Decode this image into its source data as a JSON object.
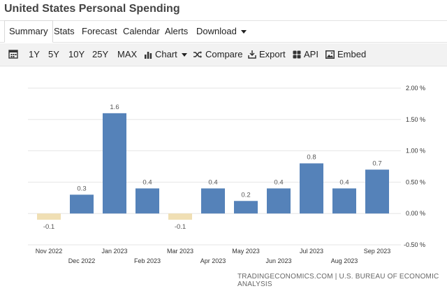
{
  "title": "United States Personal Spending",
  "tabs": [
    {
      "label": "Summary",
      "active": true
    },
    {
      "label": "Stats"
    },
    {
      "label": "Forecast"
    },
    {
      "label": "Calendar"
    },
    {
      "label": "Alerts"
    },
    {
      "label": "Download"
    }
  ],
  "toolbar": {
    "ranges": [
      "1Y",
      "5Y",
      "10Y",
      "25Y",
      "MAX"
    ],
    "chart_label": "Chart",
    "compare_label": "Compare",
    "export_label": "Export",
    "api_label": "API",
    "embed_label": "Embed"
  },
  "source": "TRADINGECONOMICS.COM | U.S. BUREAU OF ECONOMIC ANALYSIS",
  "colors": {
    "positive": "#5582b9",
    "negative": "#f0dfb4",
    "grid": "#e6e6e6"
  },
  "chart_data": {
    "type": "bar",
    "categories": [
      "Nov 2022",
      "Dec 2022",
      "Jan 2023",
      "Feb 2023",
      "Mar 2023",
      "Apr 2023",
      "May 2023",
      "Jun 2023",
      "Jul 2023",
      "Aug 2023",
      "Sep 2023"
    ],
    "values": [
      -0.1,
      0.3,
      1.6,
      0.4,
      -0.1,
      0.4,
      0.2,
      0.4,
      0.8,
      0.4,
      0.7
    ],
    "value_labels": [
      "-0.1",
      "0.3",
      "1.6",
      "0.4",
      "-0.1",
      "0.4",
      "0.2",
      "0.4",
      "0.8",
      "0.4",
      "0.7"
    ],
    "y_ticks": [
      2.0,
      1.5,
      1.0,
      0.5,
      0.0,
      -0.5
    ],
    "y_tick_labels": [
      "2.00 %",
      "1.50 %",
      "1.00 %",
      "0.50 %",
      "0.00 %",
      "-0.50 %"
    ],
    "ylim": [
      -0.5,
      2.0
    ],
    "grid": true
  }
}
